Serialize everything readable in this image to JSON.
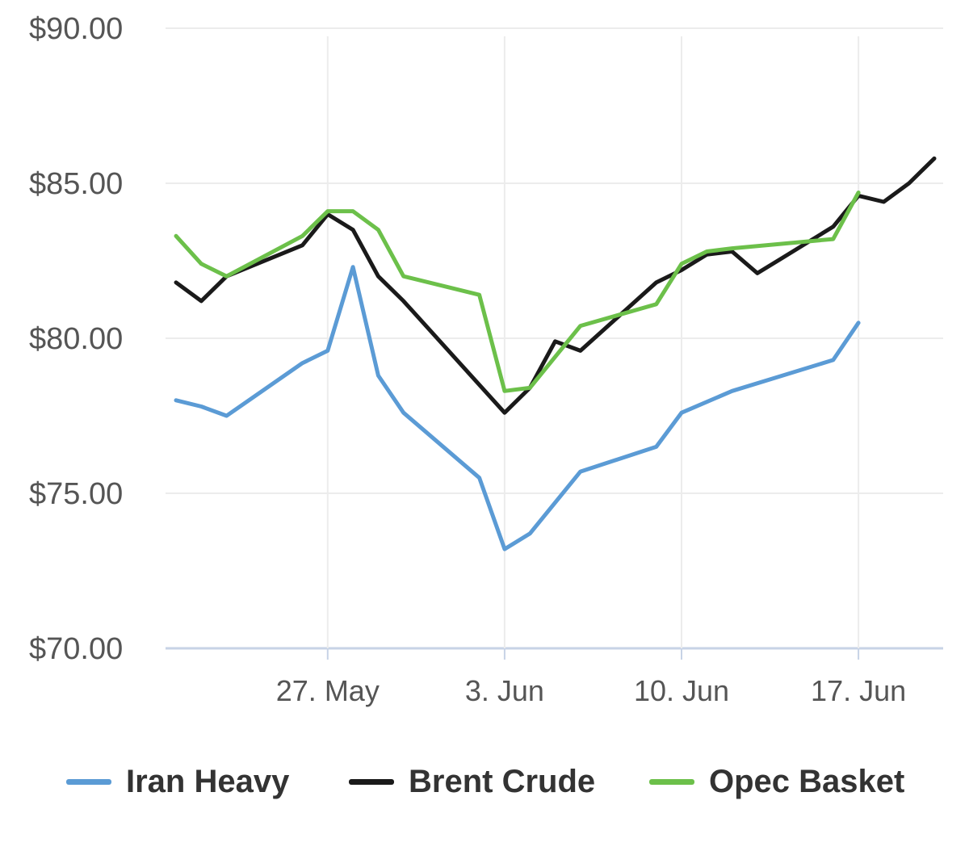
{
  "chart_data": {
    "type": "line",
    "x_dates": [
      "21 May",
      "22 May",
      "23 May",
      "24 May",
      "25 May",
      "26 May",
      "27 May",
      "28 May",
      "29 May",
      "30 May",
      "31 May",
      "1 Jun",
      "2 Jun",
      "3 Jun",
      "4 Jun",
      "5 Jun",
      "6 Jun",
      "7 Jun",
      "8 Jun",
      "9 Jun",
      "10 Jun",
      "11 Jun",
      "12 Jun",
      "13 Jun",
      "14 Jun",
      "15 Jun",
      "16 Jun",
      "17 Jun",
      "18 Jun",
      "19 Jun",
      "20 Jun",
      "21 Jun"
    ],
    "x_tick_labels": [
      {
        "date_index": 6,
        "label": "27. May"
      },
      {
        "date_index": 13,
        "label": "3. Jun"
      },
      {
        "date_index": 20,
        "label": "10. Jun"
      },
      {
        "date_index": 27,
        "label": "17. Jun"
      }
    ],
    "y_tick_labels": [
      "$70.00",
      "$75.00",
      "$80.00",
      "$85.00",
      "$90.00"
    ],
    "y_ticks": [
      70,
      75,
      80,
      85,
      90
    ],
    "ylim": [
      70,
      90
    ],
    "grid": true,
    "legend_position": "bottom",
    "series": [
      {
        "name": "Iran Heavy",
        "color": "#5b9bd5",
        "points": [
          [
            0,
            78.0
          ],
          [
            1,
            77.8
          ],
          [
            2,
            77.5
          ],
          [
            5,
            79.2
          ],
          [
            6,
            79.6
          ],
          [
            7,
            82.3
          ],
          [
            8,
            78.8
          ],
          [
            9,
            77.6
          ],
          [
            12,
            75.5
          ],
          [
            13,
            73.2
          ],
          [
            14,
            73.7
          ],
          [
            16,
            75.7
          ],
          [
            19,
            76.5
          ],
          [
            20,
            77.6
          ],
          [
            22,
            78.3
          ],
          [
            24,
            78.8
          ],
          [
            26,
            79.3
          ],
          [
            27,
            80.5
          ]
        ]
      },
      {
        "name": "Brent Crude",
        "color": "#1a1a1a",
        "points": [
          [
            0,
            81.8
          ],
          [
            1,
            81.2
          ],
          [
            2,
            82.0
          ],
          [
            5,
            83.0
          ],
          [
            6,
            84.0
          ],
          [
            7,
            83.5
          ],
          [
            8,
            82.0
          ],
          [
            9,
            81.2
          ],
          [
            13,
            77.6
          ],
          [
            14,
            78.4
          ],
          [
            15,
            79.9
          ],
          [
            16,
            79.6
          ],
          [
            19,
            81.8
          ],
          [
            20,
            82.2
          ],
          [
            21,
            82.7
          ],
          [
            22,
            82.8
          ],
          [
            23,
            82.1
          ],
          [
            24,
            82.6
          ],
          [
            26,
            83.6
          ],
          [
            27,
            84.6
          ],
          [
            28,
            84.4
          ],
          [
            29,
            85.0
          ],
          [
            30,
            85.8
          ]
        ]
      },
      {
        "name": "Opec Basket",
        "color": "#6cc04a",
        "points": [
          [
            0,
            83.3
          ],
          [
            1,
            82.4
          ],
          [
            2,
            82.0
          ],
          [
            5,
            83.3
          ],
          [
            6,
            84.1
          ],
          [
            7,
            84.1
          ],
          [
            8,
            83.5
          ],
          [
            9,
            82.0
          ],
          [
            12,
            81.4
          ],
          [
            13,
            78.3
          ],
          [
            14,
            78.4
          ],
          [
            16,
            80.4
          ],
          [
            19,
            81.1
          ],
          [
            20,
            82.4
          ],
          [
            21,
            82.8
          ],
          [
            22,
            82.9
          ],
          [
            26,
            83.2
          ],
          [
            27,
            84.7
          ]
        ]
      }
    ]
  }
}
